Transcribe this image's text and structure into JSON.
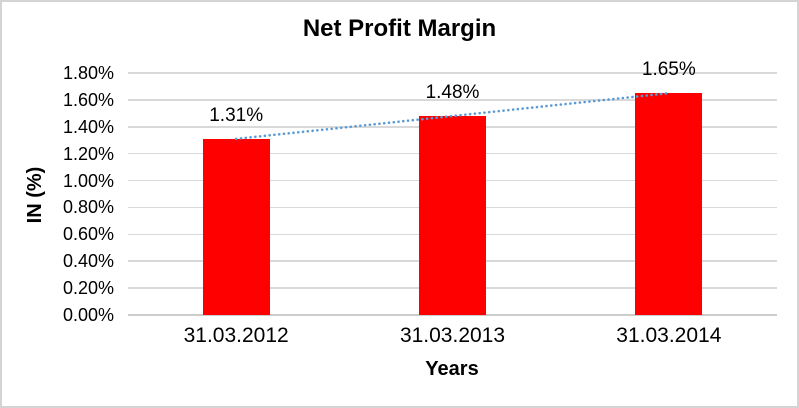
{
  "chart_data": {
    "type": "bar",
    "title": "Net Profit Margin",
    "xlabel": "Years",
    "ylabel": "IN (%)",
    "categories": [
      "31.03.2012",
      "31.03.2013",
      "31.03.2014"
    ],
    "series": [
      {
        "name": "Net Profit Margin",
        "values": [
          1.31,
          1.48,
          1.65
        ]
      }
    ],
    "data_labels": [
      "1.31%",
      "1.48%",
      "1.65%"
    ],
    "y_axis": {
      "min": 0,
      "max": 1.8,
      "step": 0.2,
      "tick_labels": [
        "0.00%",
        "0.20%",
        "0.40%",
        "0.60%",
        "0.80%",
        "1.00%",
        "1.20%",
        "1.40%",
        "1.60%",
        "1.80%"
      ]
    },
    "trendline": {
      "type": "linear",
      "style": "dotted",
      "color": "#5B9BD5"
    },
    "colors": {
      "bar": "#FF0000",
      "gridline": "#D9D9D9",
      "axis_line": "#CCCCCC",
      "text": "#000000"
    },
    "grid": "horizontal",
    "legend": "none"
  }
}
